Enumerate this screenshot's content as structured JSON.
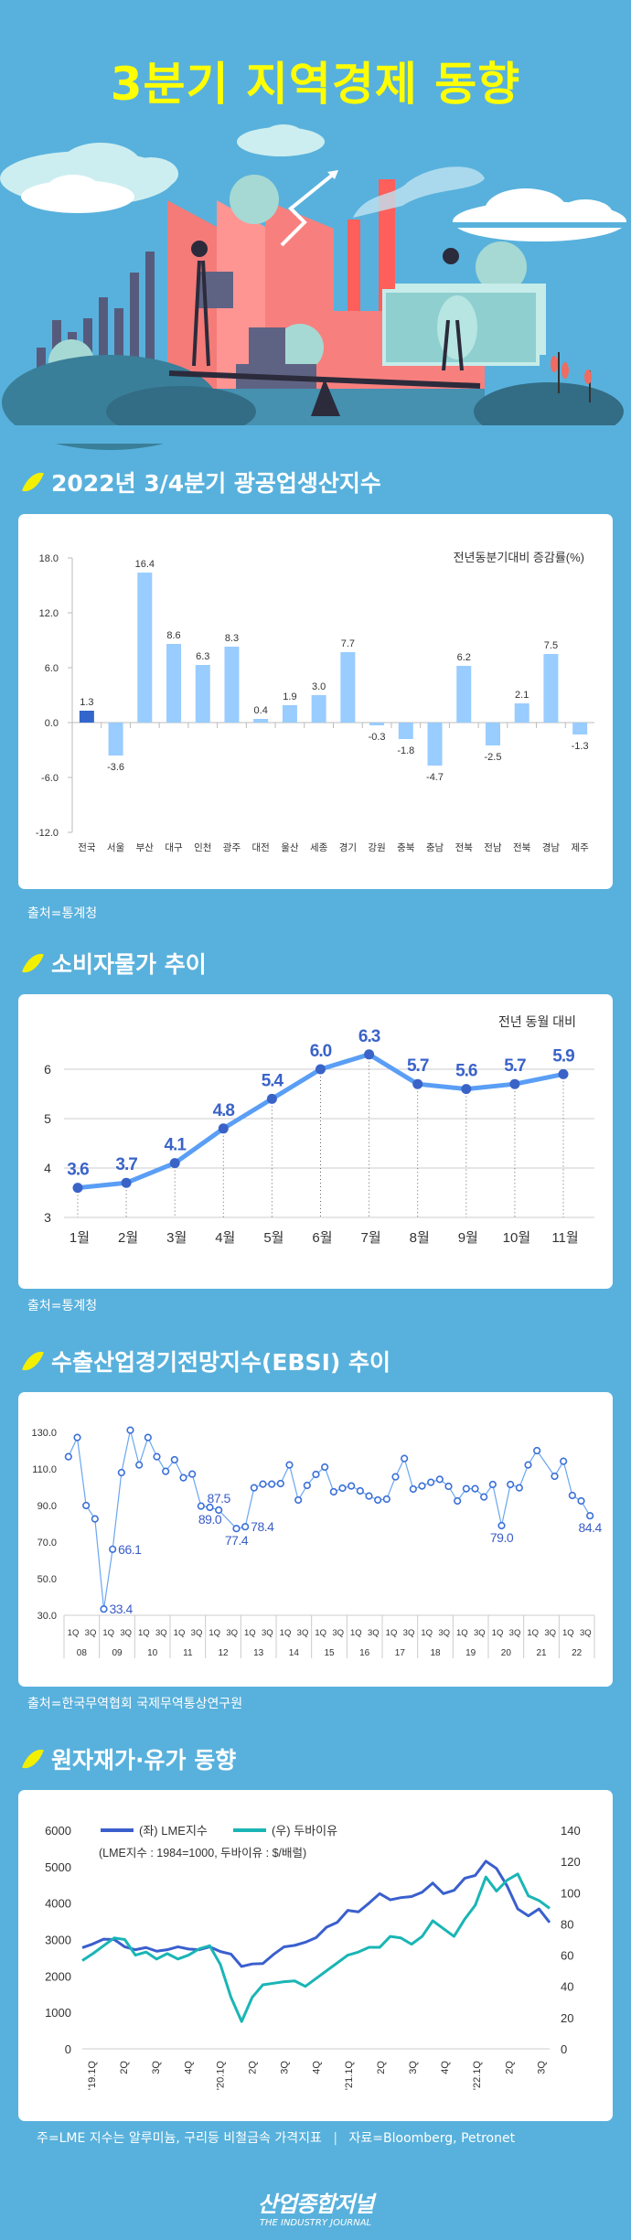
{
  "title": "3분기 지역경제 동향",
  "colors": {
    "background": "#58b1dc",
    "title": "#ffff00",
    "leaf": "#f2f000",
    "bar_highlight": "#3366cc",
    "bar": "#99ccff",
    "cpi_line": "#5a9ef5",
    "cpi_point": "#3a63c8",
    "ebsi_line": "#6aa6f0",
    "lme": "#3a5fcd",
    "dubai": "#1ab5b5"
  },
  "sections": [
    {
      "heading": "2022년 3/4분기 광공업생산지수",
      "source": "출처=통계청"
    },
    {
      "heading": "소비자물가 추이",
      "source": "출처=통계청"
    },
    {
      "heading": "수출산업경기전망지수(EBSI) 추이",
      "source": "출처=한국무역협회 국제무역통상연구원"
    },
    {
      "heading": "원자재가·유가 동향",
      "note": "주=LME 지수는 알루미늄, 구리등 비철금속 가격지표",
      "separator": "|",
      "source": "자료=Bloomberg, Petronet"
    }
  ],
  "logo": {
    "name": "산업종합저널",
    "subtitle": "THE INDUSTRY JOURNAL"
  },
  "chart_data": [
    {
      "type": "bar",
      "unit_label": "전년동분기대비 증감률(%)",
      "categories": [
        "전국",
        "서울",
        "부산",
        "대구",
        "인천",
        "광주",
        "대전",
        "울산",
        "세종",
        "경기",
        "강원",
        "충북",
        "충남",
        "전북",
        "전남",
        "전북",
        "경남",
        "제주"
      ],
      "values": [
        1.3,
        -3.6,
        16.4,
        8.6,
        6.3,
        8.3,
        0.4,
        1.9,
        3.0,
        7.7,
        -0.3,
        -1.8,
        -4.7,
        6.2,
        -2.5,
        2.1,
        7.5,
        -1.3
      ],
      "value_labels": [
        "1.3",
        "-3.6",
        "16.4",
        "8.6",
        "6.3",
        "8.3",
        "0.4",
        "1.9",
        "3.0",
        "7.7",
        "-0.3",
        "-1.8",
        "-4.7",
        "6.2",
        "-2.5",
        "2.1",
        "7.5",
        "-1.3"
      ],
      "highlight_index": 0,
      "ylim": [
        -12,
        18
      ],
      "yticks": [
        "18.0",
        "12.0",
        "6.0",
        "0.0",
        "-6.0",
        "-12.0"
      ],
      "grid": false
    },
    {
      "type": "line",
      "unit_label": "전년 동월 대비",
      "categories": [
        "1월",
        "2월",
        "3월",
        "4월",
        "5월",
        "6월",
        "7월",
        "8월",
        "9월",
        "10월",
        "11월"
      ],
      "values": [
        3.6,
        3.7,
        4.1,
        4.8,
        5.4,
        6.0,
        6.3,
        5.7,
        5.6,
        5.7,
        5.9
      ],
      "value_labels": [
        "3.6",
        "3.7",
        "4.1",
        "4.8",
        "5.4",
        "6.0",
        "6.3",
        "5.7",
        "5.6",
        "5.7",
        "5.9"
      ],
      "ylim": [
        3,
        6
      ],
      "yticks": [
        "6",
        "5",
        "4",
        "3"
      ],
      "grid": true
    },
    {
      "type": "line",
      "years": [
        "08",
        "09",
        "10",
        "11",
        "12",
        "13",
        "14",
        "15",
        "16",
        "17",
        "18",
        "19",
        "20",
        "21",
        "22"
      ],
      "quarter_labels": [
        "1Q",
        "3Q"
      ],
      "values": [
        116.7,
        127.2,
        90.0,
        82.7,
        33.4,
        66.1,
        108.0,
        131.2,
        112.2,
        127.2,
        116.7,
        108.7,
        115.0,
        105.2,
        107.2,
        89.7,
        89.0,
        87.5,
        null,
        77.4,
        78.4,
        99.7,
        101.7,
        101.7,
        102.0,
        112.2,
        93.0,
        101.0,
        107.0,
        111.0,
        97.5,
        99.5,
        100.7,
        98.0,
        95.2,
        93.0,
        93.5,
        105.7,
        115.7,
        99.0,
        100.7,
        102.7,
        104.3,
        100.5,
        92.5,
        99.2,
        99.2,
        94.7,
        101.5,
        79.0,
        101.5,
        99.7,
        112.2,
        120.0,
        null,
        106.0,
        114.2,
        95.5,
        92.5,
        84.4
      ],
      "annotations": [
        {
          "quarter": "09 1Q",
          "label": "33.4",
          "place": "right"
        },
        {
          "quarter": "09 2Q",
          "label": "66.1",
          "place": "right"
        },
        {
          "quarter": "12 1Q",
          "label": "89.0",
          "place": "below"
        },
        {
          "quarter": "12 2Q",
          "label": "87.5",
          "place": "above"
        },
        {
          "quarter": "12 4Q",
          "label": "77.4",
          "place": "below"
        },
        {
          "quarter": "13 1Q",
          "label": "78.4",
          "place": "right"
        },
        {
          "quarter": "20 2Q",
          "label": "79.0",
          "place": "below"
        },
        {
          "quarter": "22 4Q",
          "label": "84.4",
          "place": "below"
        }
      ],
      "ylim": [
        30,
        130
      ],
      "yticks": [
        "130.0",
        "110.0",
        "90.0",
        "70.0",
        "50.0",
        "30.0"
      ],
      "grid": false
    },
    {
      "type": "line",
      "subtitle": "(LME지수 : 1984=1000, 두바이유 : $/배럴)",
      "legend_placement": "top-left",
      "xtick_labels": [
        "'19.1Q",
        "2Q",
        "3Q",
        "4Q",
        "'20.1Q",
        "2Q",
        "3Q",
        "4Q",
        "'21.1Q",
        "2Q",
        "3Q",
        "4Q",
        "'22.1Q",
        "2Q",
        "3Q"
      ],
      "y_left": {
        "lim": [
          0,
          6000
        ],
        "ticks": [
          "6000",
          "5000",
          "4000",
          "3000",
          "2000",
          "1000",
          "0"
        ]
      },
      "y_right": {
        "lim": [
          0,
          140
        ],
        "ticks": [
          "140",
          "120",
          "100",
          "80",
          "60",
          "40",
          "20",
          "0"
        ]
      },
      "x": [
        "2019-01",
        "2019-02",
        "2019-03",
        "2019-04",
        "2019-05",
        "2019-06",
        "2019-07",
        "2019-08",
        "2019-09",
        "2019-10",
        "2019-11",
        "2019-12",
        "2020-01",
        "2020-02",
        "2020-03",
        "2020-04",
        "2020-05",
        "2020-06",
        "2020-07",
        "2020-08",
        "2020-09",
        "2020-10",
        "2020-11",
        "2020-12",
        "2021-01",
        "2021-02",
        "2021-03",
        "2021-04",
        "2021-05",
        "2021-06",
        "2021-07",
        "2021-08",
        "2021-09",
        "2021-10",
        "2021-11",
        "2021-12",
        "2022-01",
        "2022-02",
        "2022-03",
        "2022-04",
        "2022-05",
        "2022-06",
        "2022-07",
        "2022-08",
        "2022-09"
      ],
      "series": [
        {
          "name": "(좌) LME지수",
          "axis": "left",
          "values": [
            2775,
            2880,
            3010,
            3000,
            2800,
            2720,
            2780,
            2680,
            2720,
            2800,
            2740,
            2720,
            2800,
            2670,
            2600,
            2260,
            2330,
            2340,
            2590,
            2800,
            2840,
            2925,
            3050,
            3340,
            3470,
            3800,
            3760,
            4000,
            4260,
            4090,
            4150,
            4180,
            4300,
            4550,
            4260,
            4350,
            4680,
            4760,
            5150,
            4950,
            4470,
            3840,
            3650,
            3840,
            3470
          ]
        },
        {
          "name": "(우) 두바이유",
          "axis": "right",
          "values": [
            56.5,
            61,
            66,
            71,
            70,
            60,
            62,
            57.5,
            61,
            57.5,
            60,
            64,
            66,
            54,
            33,
            17.5,
            33,
            41,
            42,
            43,
            43.5,
            40,
            45,
            50,
            55,
            60,
            62,
            65,
            65,
            72,
            71,
            67,
            72,
            82,
            77,
            72,
            83,
            92,
            110,
            101,
            108,
            112,
            98,
            95,
            90
          ]
        }
      ],
      "grid": false
    }
  ]
}
